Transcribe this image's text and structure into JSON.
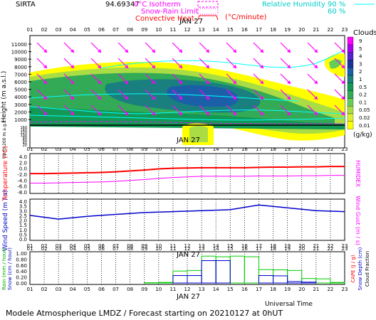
{
  "header": {
    "station": "SIRTA",
    "coords": "94.69347",
    "legend_isotherm": "0°C Isotherm",
    "legend_snow_rain": "Snow-Rain Limit",
    "legend_convective": "Convective Heat.",
    "convective_unit": "(°C/minute)",
    "rh_label": "Relative Humidity",
    "rh_90": "90 %",
    "rh_60": "60 %"
  },
  "colors": {
    "magenta": "#ff00ff",
    "cyan": "#00ffff",
    "red": "#ff0000",
    "blue": "#0000cc",
    "green": "#00cc00"
  },
  "hours": [
    "01",
    "02",
    "03",
    "04",
    "05",
    "06",
    "07",
    "08",
    "09",
    "10",
    "11",
    "12",
    "13",
    "14",
    "15",
    "16",
    "17",
    "18",
    "19",
    "20",
    "21",
    "22",
    "23"
  ],
  "date_label": "JAN 27",
  "footer": {
    "universal_time": "Universal Time",
    "model_line": "Modele Atmospherique LMDZ / Forecast starting on 20210127 at 0hUT"
  },
  "chart_data": [
    {
      "type": "heatmap",
      "title": "Clouds",
      "ylabel": "Height (m a.s.l.)",
      "ylabel_low": "Up to 200 m a.g.l.",
      "yticks_high": [
        "11000",
        "10000",
        "9000",
        "8000",
        "7000",
        "6000",
        "5000",
        "4000",
        "3000",
        "2000",
        "1000"
      ],
      "yticks_low": [
        "160",
        "140",
        "120",
        "100",
        "80",
        "60",
        "40",
        "20"
      ],
      "colorbar": {
        "title": "Clouds",
        "unit": "(g/kg)",
        "levels": [
          "9",
          "5",
          "4",
          "3",
          "2",
          "1",
          "0.5",
          "0.2",
          "0.1",
          "0.05",
          "0.02",
          "0.01"
        ],
        "colors": [
          "#ff00ff",
          "#aa00ee",
          "#5522cc",
          "#1a3399",
          "#1a5fa8",
          "#1a7f7f",
          "#119955",
          "#33aa55",
          "#66cc55",
          "#aadd44",
          "#ddee33",
          "#ffff00"
        ]
      }
    },
    {
      "type": "line",
      "ylabel": "Temperature (°C)",
      "ylabel_right": "HUMIDEX",
      "yticks": [
        "4.0",
        "2.0",
        "0.0",
        "-2.0",
        "-4.0",
        "-6.0",
        "-8.0"
      ],
      "ylim": [
        -8,
        4
      ],
      "x": [
        1,
        2,
        3,
        4,
        5,
        6,
        7,
        8,
        9,
        10,
        11,
        12,
        13,
        14,
        15,
        16,
        17,
        18,
        19,
        20,
        21,
        22,
        23
      ],
      "series": [
        {
          "values": [
            -1.8,
            -1.8,
            -1.7,
            -1.6,
            -1.5,
            -1.4,
            -1.2,
            -0.9,
            -0.6,
            -0.2,
            0.0,
            0.1,
            0.2,
            0.2,
            0.2,
            0.2,
            0.3,
            0.4,
            0.4,
            0.5,
            0.5,
            0.6,
            0.6
          ]
        },
        {
          "values": [
            -5.0,
            -5.0,
            -4.9,
            -4.8,
            -4.7,
            -4.6,
            -4.4,
            -4.1,
            -3.8,
            -3.4,
            -3.1,
            -2.9,
            -2.7,
            -2.7,
            -2.7,
            -2.7,
            -2.6,
            -2.6,
            -2.6,
            -2.5,
            -2.5,
            -2.4,
            -2.4
          ]
        }
      ]
    },
    {
      "type": "line",
      "ylabel": "Wind Speed (m / s)",
      "ylabel_right": "Wind Gust (m / s)",
      "yticks": [
        "4.0",
        "3.5",
        "3.0",
        "2.5",
        "2.0",
        "1.5",
        "1.0",
        "0.5",
        "0.0"
      ],
      "ylim": [
        0,
        4
      ],
      "x": [
        1,
        3,
        5,
        7,
        9,
        11,
        13,
        15,
        17,
        19,
        21,
        23
      ],
      "values": [
        2.5,
        2.1,
        2.4,
        2.6,
        2.8,
        2.9,
        3.0,
        3.1,
        3.6,
        3.3,
        3.0,
        2.9
      ]
    },
    {
      "type": "bar",
      "ylabel_left": "Rain (mm / hour)",
      "ylabel_left2": "Snow (cm / hour)",
      "ylabel_right": "CAPE (J / g)",
      "ylabel_right2": "Snow Depth (cm)",
      "ylabel_right3": "Cloud Fraction",
      "yticks": [
        "1.00",
        "0.80",
        "0.60",
        "0.40",
        "0.20",
        "0.00"
      ],
      "ylim": [
        0,
        1
      ],
      "categories": [
        "01",
        "02",
        "03",
        "04",
        "05",
        "06",
        "07",
        "08",
        "09",
        "10",
        "11",
        "12",
        "13",
        "14",
        "15",
        "16",
        "17",
        "18",
        "19",
        "20",
        "21",
        "22",
        "23"
      ],
      "series": [
        {
          "values": [
            0,
            0,
            0,
            0,
            0,
            0,
            0,
            0,
            0.01,
            0.02,
            0.4,
            0.42,
            0.9,
            0.88,
            0.9,
            0.88,
            0.45,
            0.44,
            0.42,
            0.15,
            0.14,
            0.02,
            0.0
          ]
        },
        {
          "values": [
            0,
            0,
            0,
            0,
            0,
            0,
            0,
            0,
            0.0,
            0.0,
            0.25,
            0.25,
            0.75,
            0.75,
            0.0,
            0.0,
            0.25,
            0.24,
            0.05,
            0.03,
            0.0,
            0.0,
            0.0
          ]
        }
      ]
    }
  ]
}
